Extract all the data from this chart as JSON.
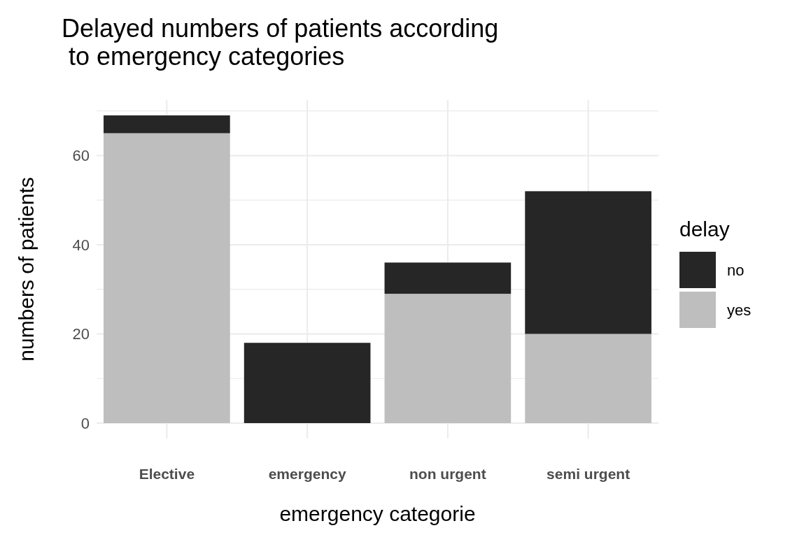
{
  "chart_data": {
    "type": "bar",
    "title": "Delayed numbers of patients according\n to emergency categories",
    "xlabel": "emergency categorie",
    "ylabel": "numbers of patients",
    "legend_title": "delay",
    "categories": [
      "Elective",
      "emergency",
      "non urgent",
      "semi urgent"
    ],
    "stacked": true,
    "series": [
      {
        "name": "yes",
        "color": "#bebebe",
        "values": [
          65,
          0,
          29,
          20
        ]
      },
      {
        "name": "no",
        "color": "#262626",
        "values": [
          4,
          18,
          7,
          32
        ]
      }
    ],
    "ylim": [
      -3.45,
      72.45
    ],
    "yticks": [
      0,
      {
        "value": 10,
        "label": null
      },
      20,
      {
        "value": 30,
        "label": null
      },
      40,
      {
        "value": 50,
        "label": null
      },
      60,
      {
        "value": 70,
        "label": null
      }
    ],
    "grid": true,
    "legend": "right"
  }
}
